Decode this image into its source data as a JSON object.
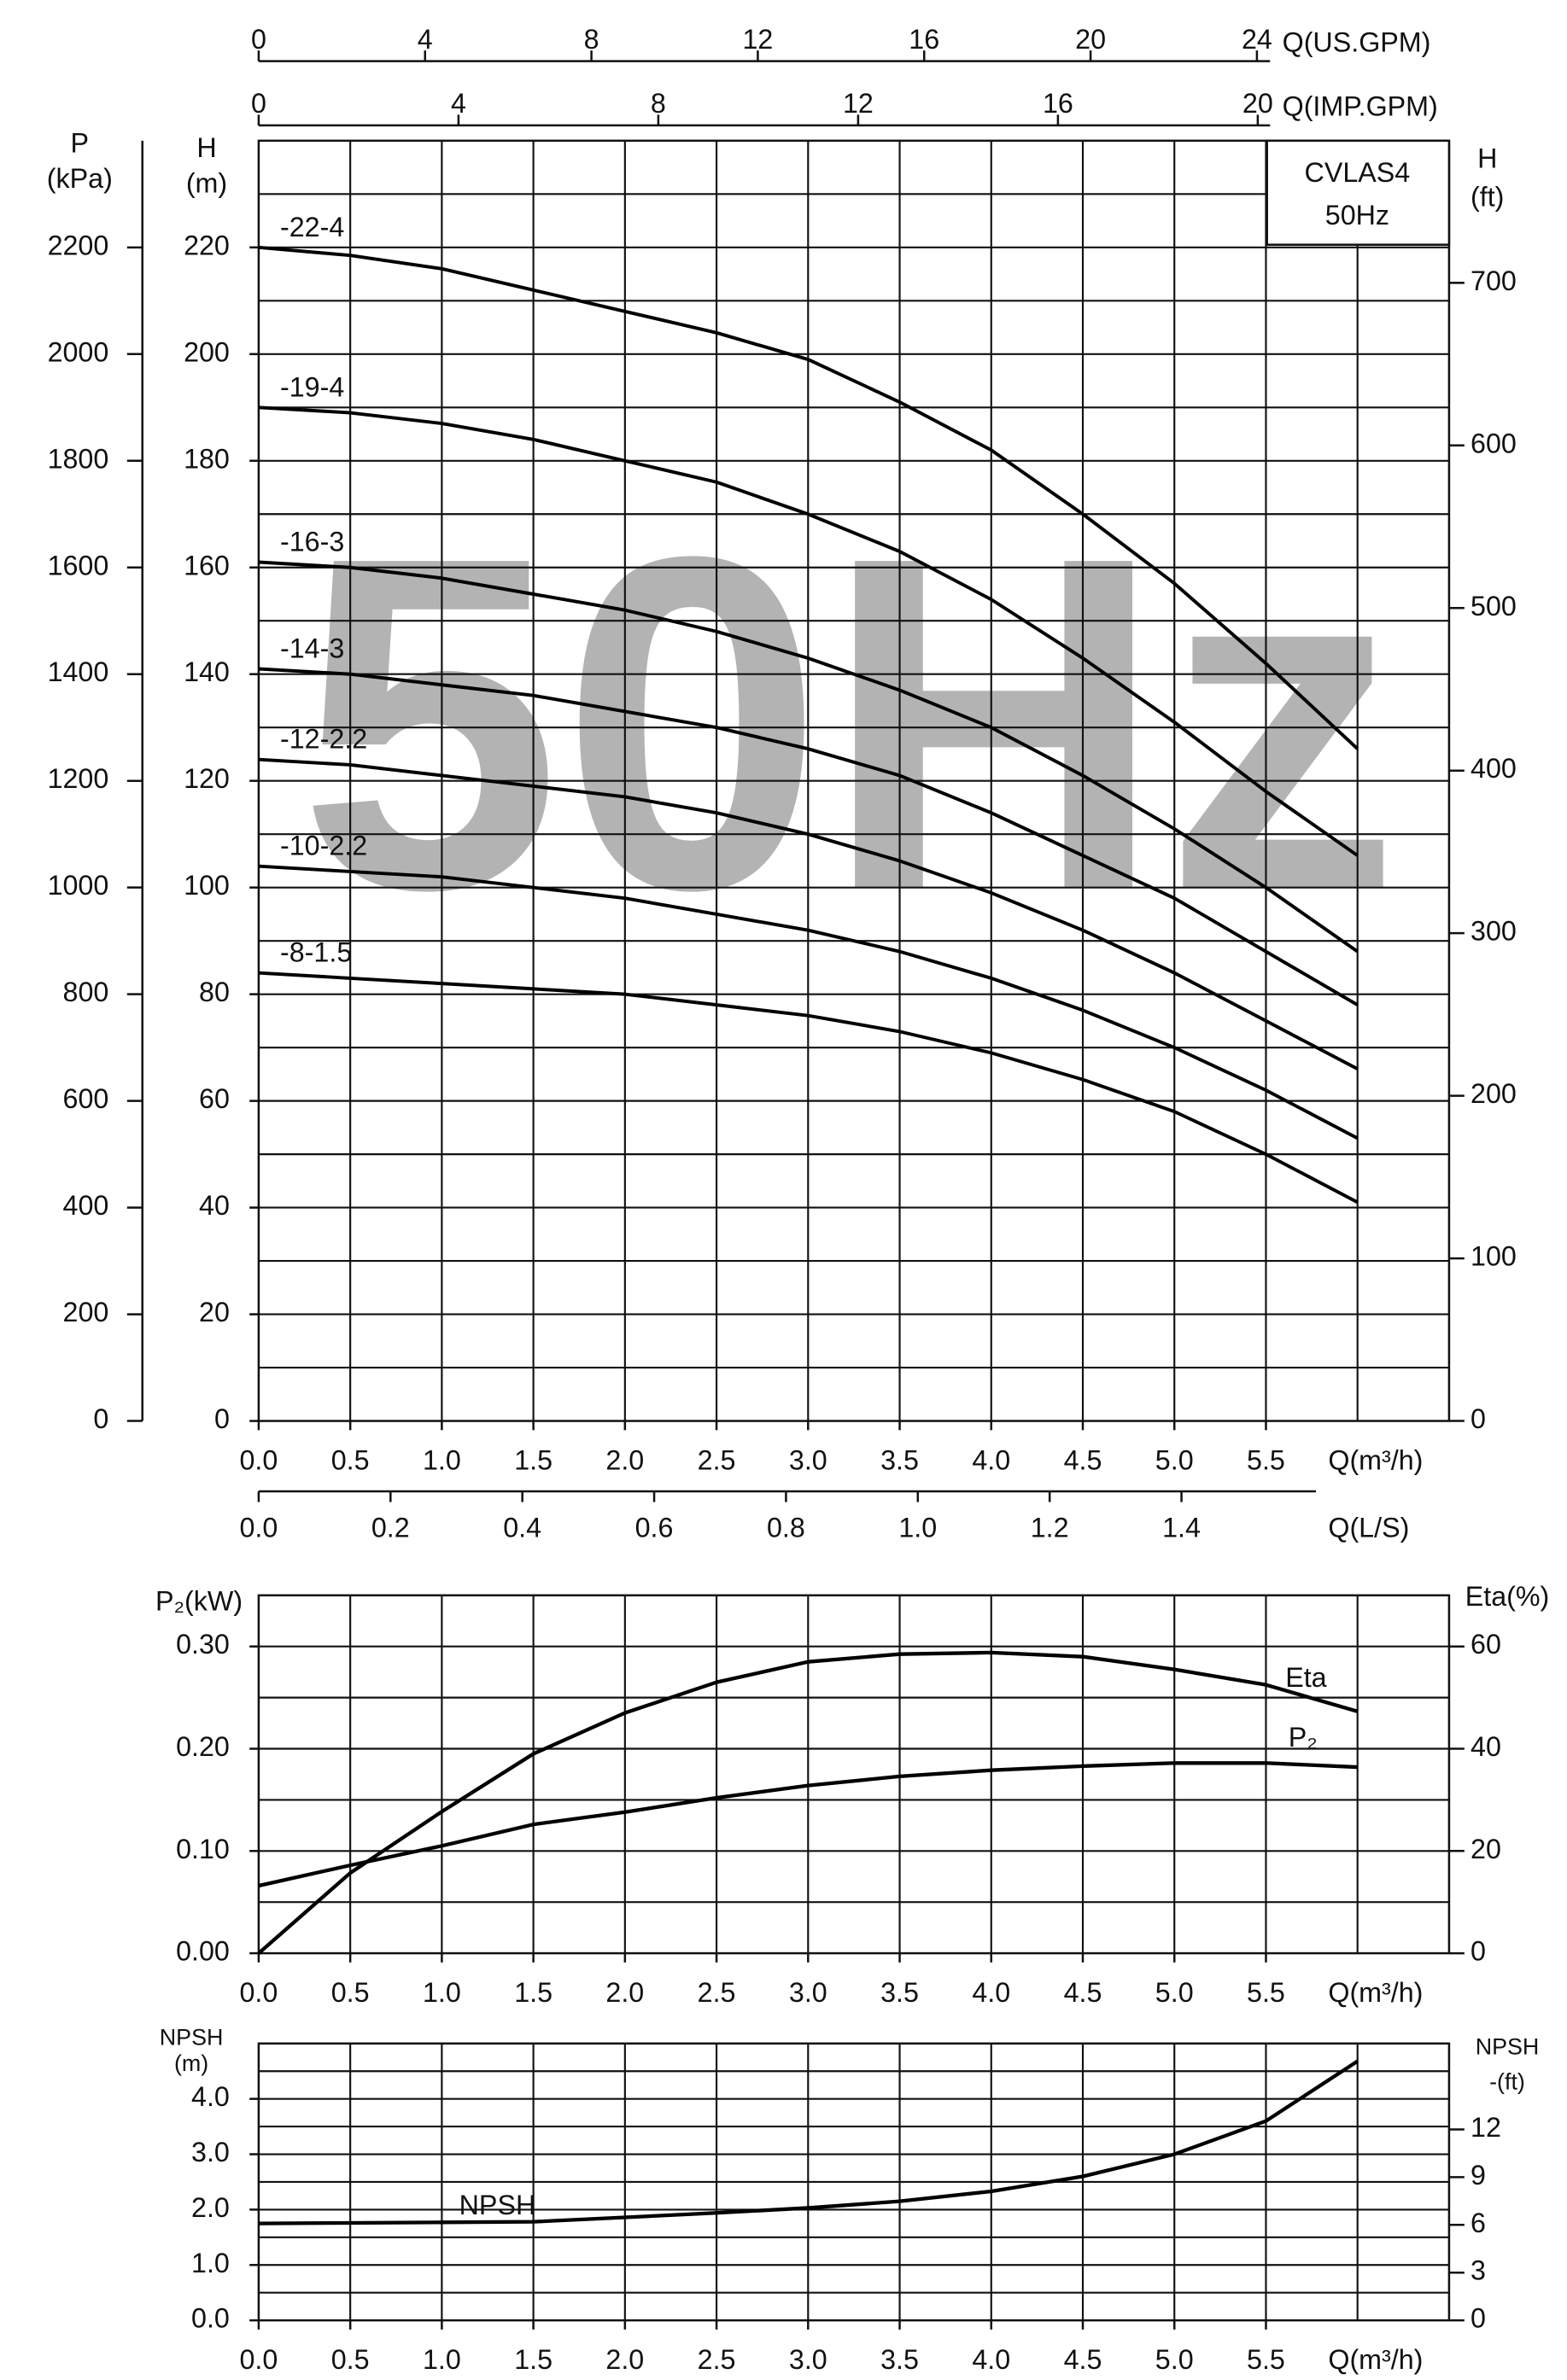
{
  "chart_data": [
    {
      "type": "line",
      "watermark": "50Hz",
      "annotation": [
        "CVLAS4",
        "50Hz"
      ],
      "x_label": "Q(m³/h)",
      "y_label": [
        "H",
        "(m)"
      ],
      "y2_label": [
        "H",
        "(ft)"
      ],
      "xlim": [
        0,
        6.5
      ],
      "xticks": [
        {
          "value": 0,
          "label": "0.0"
        },
        0.5,
        {
          "value": 1,
          "label": "1.0"
        },
        1.5,
        {
          "value": 2,
          "label": "2.0"
        },
        2.5,
        {
          "value": 3,
          "label": "3.0"
        },
        3.5,
        {
          "value": 4,
          "label": "4.0"
        },
        4.5,
        {
          "value": 5,
          "label": "5.0"
        },
        5.5
      ],
      "xgrid": [
        0.5,
        1,
        1.5,
        2,
        2.5,
        3,
        3.5,
        4,
        4.5,
        5,
        5.5,
        6
      ],
      "ylim": [
        0,
        240
      ],
      "yticks": [
        0,
        20,
        40,
        60,
        80,
        100,
        120,
        140,
        160,
        180,
        200,
        220
      ],
      "ygrid": [
        10,
        20,
        30,
        40,
        50,
        60,
        70,
        80,
        90,
        100,
        110,
        120,
        130,
        140,
        150,
        160,
        170,
        180,
        190,
        200,
        210,
        220,
        230
      ],
      "y2lim": [
        0,
        787.4
      ],
      "y2ticks": [
        0,
        100,
        200,
        300,
        400,
        500,
        600,
        700
      ],
      "extra_axes": [
        {
          "side": "left",
          "label": [
            "P",
            "(kPa)"
          ],
          "lim": [
            0,
            2400
          ],
          "ticks": [
            0,
            200,
            400,
            600,
            800,
            1000,
            1200,
            1400,
            1600,
            1800,
            2000,
            2200
          ]
        },
        {
          "side": "top",
          "label": [
            "Q(US.GPM)"
          ],
          "lim": [
            0,
            28.62
          ],
          "ticks": [
            0,
            4,
            8,
            12,
            16,
            20,
            24
          ]
        },
        {
          "side": "top",
          "label": [
            "Q(IMP.GPM)"
          ],
          "lim": [
            0,
            23.83
          ],
          "ticks": [
            0,
            4,
            8,
            12,
            16,
            20
          ]
        },
        {
          "side": "bottom",
          "label": [
            "Q(L/S)"
          ],
          "lim": [
            0,
            1.806
          ],
          "ticks": [
            {
              "value": 0,
              "label": "0.0"
            },
            0.2,
            0.4,
            0.6,
            0.8,
            {
              "value": 1,
              "label": "1.0"
            },
            1.2,
            1.4
          ]
        }
      ],
      "x": [
        0,
        0.5,
        1,
        1.5,
        2,
        2.5,
        3,
        3.5,
        4,
        4.5,
        5,
        5.5,
        6
      ],
      "series": [
        {
          "name": "-22-4",
          "color": "#000000",
          "values": [
            220,
            218.5,
            216,
            212,
            208,
            204,
            199,
            191,
            182,
            170,
            157,
            142,
            126
          ]
        },
        {
          "name": "-19-4",
          "color": "#000000",
          "values": [
            190,
            189,
            187,
            184,
            180,
            176,
            170,
            163,
            154,
            143,
            131,
            118,
            106
          ]
        },
        {
          "name": "-16-3",
          "color": "#000000",
          "values": [
            161,
            160,
            158,
            155,
            152,
            148,
            143,
            137,
            130,
            121,
            111,
            100,
            88
          ]
        },
        {
          "name": "-14-3",
          "color": "#000000",
          "values": [
            141,
            140,
            138,
            136,
            133,
            130,
            126,
            121,
            114,
            106,
            98,
            88,
            78
          ]
        },
        {
          "name": "-12-2.2",
          "color": "#000000",
          "values": [
            124,
            123,
            121,
            119,
            117,
            114,
            110,
            105,
            99,
            92,
            84,
            75,
            66
          ]
        },
        {
          "name": "-10-2.2",
          "color": "#000000",
          "values": [
            104,
            103,
            102,
            100,
            98,
            95,
            92,
            88,
            83,
            77,
            70,
            62,
            53
          ]
        },
        {
          "name": "-8-1.5",
          "color": "#000000",
          "values": [
            84,
            83,
            82,
            81,
            80,
            78,
            76,
            73,
            69,
            64,
            58,
            50,
            41
          ]
        }
      ]
    },
    {
      "type": "line",
      "x_label": "Q(m³/h)",
      "y_label": [
        "P₂(kW)"
      ],
      "y2_label": [
        "Eta(%)"
      ],
      "xlim": [
        0,
        6.5
      ],
      "xticks": [
        {
          "value": 0,
          "label": "0.0"
        },
        0.5,
        {
          "value": 1,
          "label": "1.0"
        },
        1.5,
        {
          "value": 2,
          "label": "2.0"
        },
        2.5,
        {
          "value": 3,
          "label": "3.0"
        },
        3.5,
        {
          "value": 4,
          "label": "4.0"
        },
        4.5,
        {
          "value": 5,
          "label": "5.0"
        },
        5.5
      ],
      "xgrid": [
        0.5,
        1,
        1.5,
        2,
        2.5,
        3,
        3.5,
        4,
        4.5,
        5,
        5.5,
        6
      ],
      "ylim": [
        0,
        0.35
      ],
      "yticks": [
        {
          "value": 0,
          "label": "0.00"
        },
        {
          "value": 0.1,
          "label": "0.10"
        },
        {
          "value": 0.2,
          "label": "0.20"
        },
        {
          "value": 0.3,
          "label": "0.30"
        }
      ],
      "ygrid": [
        0.05,
        0.1,
        0.15,
        0.2,
        0.25,
        0.3
      ],
      "y2lim": [
        0,
        70
      ],
      "y2ticks": [
        0,
        20,
        40,
        60
      ],
      "x": [
        0,
        0.5,
        1,
        1.5,
        2,
        2.5,
        3,
        3.5,
        4,
        4.5,
        5,
        5.5,
        6
      ],
      "series": [
        {
          "name": "Eta",
          "color": "#000000",
          "axis": "y2",
          "values": [
            0,
            15.7,
            27.7,
            39,
            47,
            53,
            57,
            58.5,
            58.8,
            58,
            55.5,
            52.5,
            47.3
          ]
        },
        {
          "name": "P₂",
          "color": "#000000",
          "values": [
            0.066,
            0.086,
            0.105,
            0.126,
            0.138,
            0.152,
            0.164,
            0.173,
            0.179,
            0.183,
            0.186,
            0.186,
            0.182
          ]
        }
      ]
    },
    {
      "type": "line",
      "x_label": "Q(m³/h)",
      "y_label": [
        "NPSH",
        "(m)"
      ],
      "y2_label": [
        "NPSH",
        "-(ft)"
      ],
      "xlim": [
        0,
        6.5
      ],
      "xticks": [
        {
          "value": 0,
          "label": "0.0"
        },
        0.5,
        {
          "value": 1,
          "label": "1.0"
        },
        1.5,
        {
          "value": 2,
          "label": "2.0"
        },
        2.5,
        {
          "value": 3,
          "label": "3.0"
        },
        3.5,
        {
          "value": 4,
          "label": "4.0"
        },
        4.5,
        {
          "value": 5,
          "label": "5.0"
        },
        5.5
      ],
      "xgrid": [
        0.5,
        1,
        1.5,
        2,
        2.5,
        3,
        3.5,
        4,
        4.5,
        5,
        5.5,
        6
      ],
      "ylim": [
        0,
        5
      ],
      "yticks": [
        {
          "value": 0,
          "label": "0.0"
        },
        {
          "value": 1,
          "label": "1.0"
        },
        {
          "value": 2,
          "label": "2.0"
        },
        {
          "value": 3,
          "label": "3.0"
        },
        {
          "value": 4,
          "label": "4.0"
        }
      ],
      "ygrid": [
        0.5,
        1,
        1.5,
        2,
        2.5,
        3,
        3.5,
        4,
        4.5
      ],
      "y2lim": [
        0,
        17.4
      ],
      "y2ticks": [
        0,
        3,
        6,
        9,
        12
      ],
      "x": [
        0,
        0.5,
        1,
        1.5,
        2,
        2.5,
        3,
        3.5,
        4,
        4.5,
        5,
        5.5,
        6
      ],
      "series": [
        {
          "name": "NPSH",
          "color": "#000000",
          "values": [
            1.75,
            1.76,
            1.77,
            1.78,
            1.86,
            1.94,
            2.03,
            2.15,
            2.33,
            2.6,
            3.0,
            3.6,
            4.68
          ]
        }
      ]
    }
  ]
}
